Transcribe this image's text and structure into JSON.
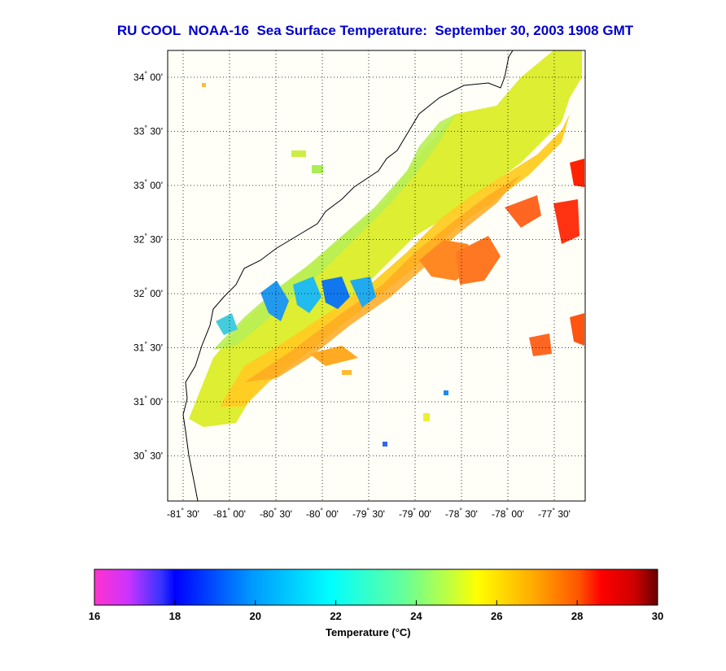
{
  "title": "RU COOL  NOAA-16  Sea Surface Temperature:  September 30, 2003 1908 GMT",
  "lat_ticks": [
    {
      "deg": "34",
      "min": "00'",
      "value": 34.0
    },
    {
      "deg": "33",
      "min": "30'",
      "value": 33.5
    },
    {
      "deg": "33",
      "min": "00'",
      "value": 33.0
    },
    {
      "deg": "32",
      "min": "30'",
      "value": 32.5
    },
    {
      "deg": "32",
      "min": "00'",
      "value": 32.0
    },
    {
      "deg": "31",
      "min": "30'",
      "value": 31.5
    },
    {
      "deg": "31",
      "min": "00'",
      "value": 31.0
    },
    {
      "deg": "30",
      "min": "30'",
      "value": 30.5
    }
  ],
  "lon_ticks": [
    {
      "deg": "-81",
      "min": "30'",
      "value": -81.5
    },
    {
      "deg": "-81",
      "min": "00'",
      "value": -81.0
    },
    {
      "deg": "-80",
      "min": "30'",
      "value": -80.5
    },
    {
      "deg": "-80",
      "min": "00'",
      "value": -80.0
    },
    {
      "deg": "-79",
      "min": "30'",
      "value": -79.5
    },
    {
      "deg": "-79",
      "min": "00'",
      "value": -79.0
    },
    {
      "deg": "-78",
      "min": "30'",
      "value": -78.5
    },
    {
      "deg": "-78",
      "min": "00'",
      "value": -78.0
    },
    {
      "deg": "-77",
      "min": "30'",
      "value": -77.5
    }
  ],
  "colorbar": {
    "label": "Temperature (°C)",
    "ticks": [
      "16",
      "18",
      "20",
      "22",
      "24",
      "26",
      "28",
      "30"
    ],
    "min": 16,
    "max": 30
  },
  "colors": {
    "title": "#0000cc",
    "land": "#ffffff",
    "frame": "#000000"
  }
}
